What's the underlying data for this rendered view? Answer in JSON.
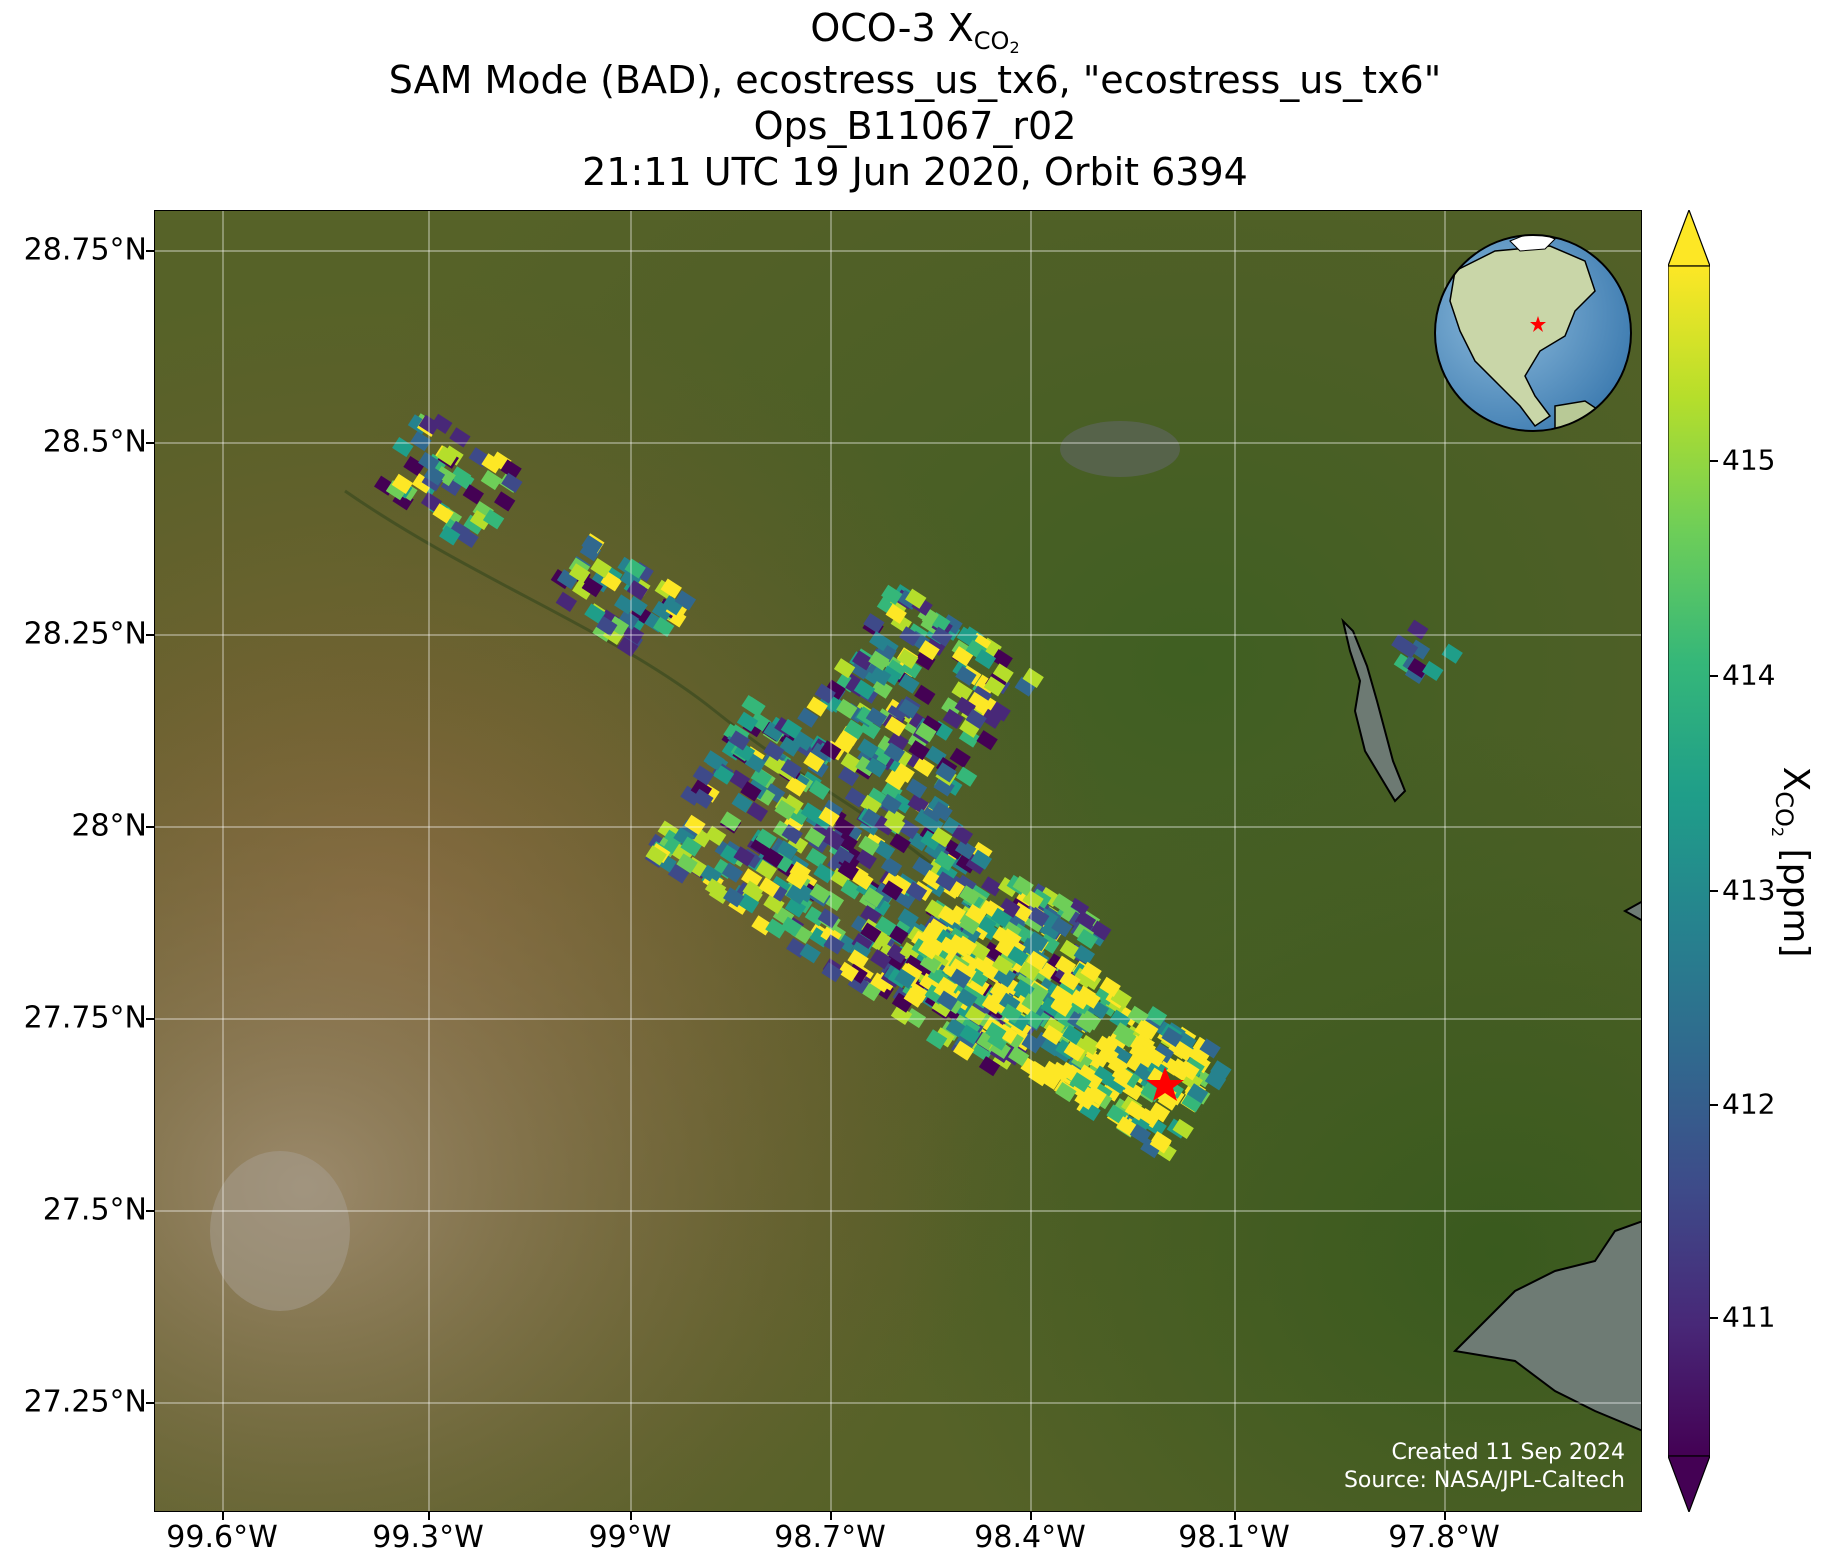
{
  "title": {
    "line1_prefix": "OCO-3 X",
    "line1_sub": "CO",
    "line1_subsub": "2",
    "line2": "SAM Mode (BAD), ecostress_us_tx6, \"ecostress_us_tx6\"",
    "line3": "Ops_B11067_r02",
    "line4": "21:11 UTC 19 Jun 2020, Orbit 6394"
  },
  "latitude_labels": [
    "28.75°N",
    "28.5°N",
    "28.25°N",
    "28°N",
    "27.75°N",
    "27.5°N",
    "27.25°N"
  ],
  "longitude_labels": [
    "99.6°W",
    "99.3°W",
    "99°W",
    "98.7°W",
    "98.4°W",
    "98.1°W",
    "97.8°W"
  ],
  "colorbar": {
    "ticks": [
      "415",
      "414",
      "413",
      "412",
      "411"
    ],
    "label_prefix": "X",
    "label_sub": "CO",
    "label_subsub": "2",
    "label_suffix": " [ppm]",
    "colors": [
      "#440154",
      "#482878",
      "#3e4a89",
      "#31688e",
      "#26828e",
      "#1f9e89",
      "#35b779",
      "#6ece58",
      "#b5de2b",
      "#fde725"
    ]
  },
  "credits": {
    "created": "Created 11 Sep 2024",
    "source": "Source: NASA/JPL-Caltech"
  },
  "map": {
    "basemap": "satellite imagery",
    "target_marker": "red-star",
    "inset": "globe-locator"
  },
  "chart_data": {
    "type": "heatmap",
    "xlim_lon": [
      -99.7,
      -97.45
    ],
    "ylim_lat": [
      27.12,
      28.8
    ],
    "value_range_ppm": [
      410.3,
      415.9
    ],
    "target_location": {
      "lon": -98.2,
      "lat": 27.67
    }
  }
}
